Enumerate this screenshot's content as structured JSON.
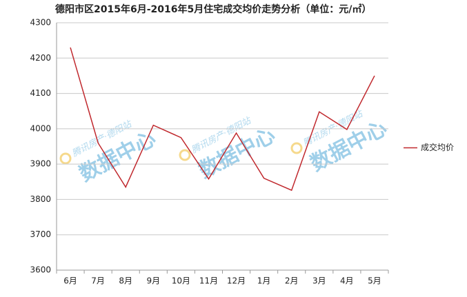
{
  "chart_data": {
    "type": "line",
    "title": "德阳市区2015年6月-2016年5月住宅成交均价走势分析（单位：元/㎡）",
    "categories": [
      "6月",
      "7月",
      "8月",
      "9月",
      "10月",
      "11月",
      "12月",
      "1月",
      "2月",
      "3月",
      "4月",
      "5月"
    ],
    "series": [
      {
        "name": "成交均价",
        "color": "#c0282d",
        "values": [
          4230,
          3960,
          3835,
          4010,
          3975,
          3858,
          3988,
          3860,
          3826,
          4048,
          3998,
          4150
        ]
      }
    ],
    "ylim": [
      3600,
      4300
    ],
    "yticks": [
      3600,
      3700,
      3800,
      3900,
      4000,
      4100,
      4200,
      4300
    ],
    "grid": true,
    "legend": "right",
    "watermark": [
      "腾讯房产·德阳站",
      "数据中心"
    ]
  }
}
